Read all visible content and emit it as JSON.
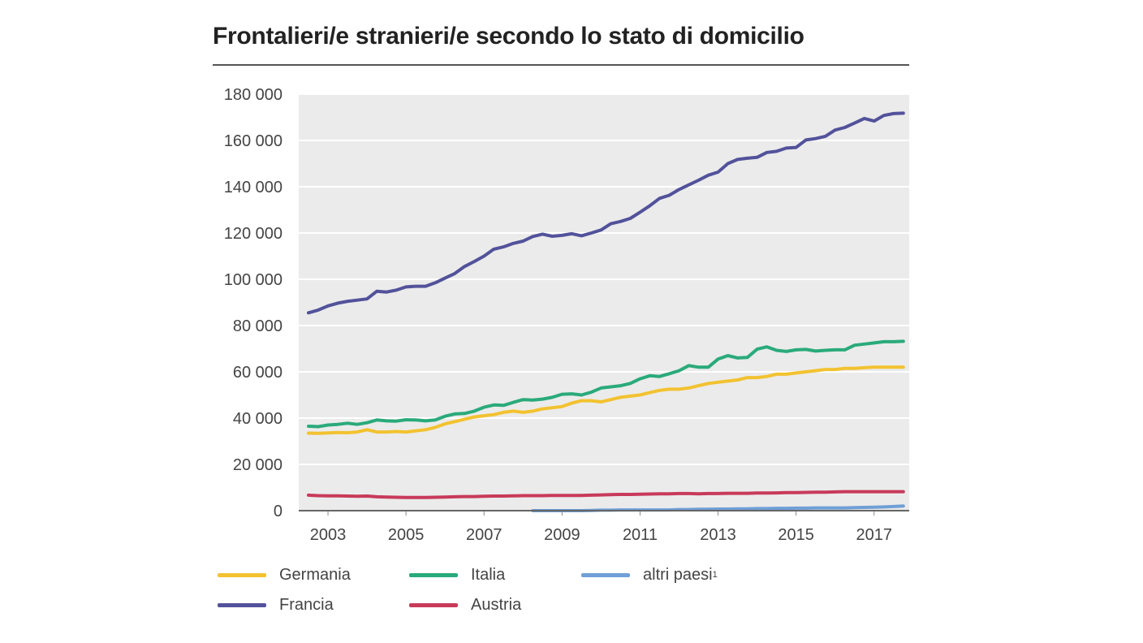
{
  "title": "Frontalieri/e stranieri/e secondo lo stato di domicilio",
  "chart_data": {
    "type": "line",
    "title": "Frontalieri/e stranieri/e secondo lo stato di domicilio",
    "xlabel": "",
    "ylabel": "",
    "xlim": [
      2002.25,
      2017.9
    ],
    "ylim": [
      0,
      180000
    ],
    "grid": true,
    "legend_position": "bottom",
    "x_ticks": [
      2003,
      2005,
      2007,
      2009,
      2011,
      2013,
      2015,
      2017
    ],
    "y_ticks": [
      0,
      20000,
      40000,
      60000,
      80000,
      100000,
      120000,
      140000,
      160000,
      180000
    ],
    "y_tick_labels": [
      "0",
      "20 000",
      "40 000",
      "60 000",
      "80 000",
      "100 000",
      "120 000",
      "140 000",
      "160 000",
      "180 000"
    ],
    "series": [
      {
        "name": "Germania",
        "color": "#f2c230",
        "x": [
          2002.5,
          2002.75,
          2003,
          2003.25,
          2003.5,
          2003.75,
          2004,
          2004.25,
          2004.5,
          2004.75,
          2005,
          2005.25,
          2005.5,
          2005.75,
          2006,
          2006.25,
          2006.5,
          2006.75,
          2007,
          2007.25,
          2007.5,
          2007.75,
          2008,
          2008.25,
          2008.5,
          2008.75,
          2009,
          2009.25,
          2009.5,
          2009.75,
          2010,
          2010.25,
          2010.5,
          2010.75,
          2011,
          2011.25,
          2011.5,
          2011.75,
          2012,
          2012.25,
          2012.5,
          2012.75,
          2013,
          2013.25,
          2013.5,
          2013.75,
          2014,
          2014.25,
          2014.5,
          2014.75,
          2015,
          2015.25,
          2015.5,
          2015.75,
          2016,
          2016.25,
          2016.5,
          2016.75,
          2017,
          2017.25,
          2017.5,
          2017.75
        ],
        "values": [
          33500,
          33400,
          33600,
          33800,
          33700,
          34000,
          35000,
          34000,
          34000,
          34200,
          34000,
          34500,
          35000,
          36000,
          37500,
          38500,
          39500,
          40500,
          41000,
          41500,
          42500,
          43000,
          42500,
          43000,
          44000,
          44500,
          45000,
          46500,
          47500,
          47500,
          47000,
          48000,
          49000,
          49500,
          50000,
          51000,
          52000,
          52500,
          52500,
          53000,
          54000,
          55000,
          55500,
          56000,
          56500,
          57500,
          57500,
          58000,
          59000,
          59000,
          59500,
          60000,
          60500,
          61000,
          61000,
          61500,
          61500,
          61800,
          62000,
          62000,
          62000,
          62000
        ]
      },
      {
        "name": "Italia",
        "color": "#2aaa7b",
        "x": [
          2002.5,
          2002.75,
          2003,
          2003.25,
          2003.5,
          2003.75,
          2004,
          2004.25,
          2004.5,
          2004.75,
          2005,
          2005.25,
          2005.5,
          2005.75,
          2006,
          2006.25,
          2006.5,
          2006.75,
          2007,
          2007.25,
          2007.5,
          2007.75,
          2008,
          2008.25,
          2008.5,
          2008.75,
          2009,
          2009.25,
          2009.5,
          2009.75,
          2010,
          2010.25,
          2010.5,
          2010.75,
          2011,
          2011.25,
          2011.5,
          2011.75,
          2012,
          2012.25,
          2012.5,
          2012.75,
          2013,
          2013.25,
          2013.5,
          2013.75,
          2014,
          2014.25,
          2014.5,
          2014.75,
          2015,
          2015.25,
          2015.5,
          2015.75,
          2016,
          2016.25,
          2016.5,
          2016.75,
          2017,
          2017.25,
          2017.5,
          2017.75
        ],
        "values": [
          36500,
          36300,
          37000,
          37300,
          37800,
          37300,
          38000,
          39200,
          38800,
          38700,
          39300,
          39200,
          38800,
          39200,
          40800,
          41800,
          42000,
          43000,
          44700,
          45700,
          45500,
          46800,
          48000,
          47800,
          48200,
          49000,
          50300,
          50500,
          50000,
          51200,
          53000,
          53500,
          54000,
          55000,
          57000,
          58300,
          58000,
          59200,
          60500,
          62700,
          62000,
          62000,
          65500,
          67000,
          66000,
          66200,
          69800,
          70800,
          69300,
          68800,
          69500,
          69700,
          69000,
          69300,
          69500,
          69500,
          71500,
          72000,
          72500,
          73000,
          73000,
          73200
        ]
      },
      {
        "name": "altri paesi",
        "color": "#6f9fd6",
        "x": [
          2008.25,
          2008.5,
          2008.75,
          2009,
          2009.25,
          2009.5,
          2009.75,
          2010,
          2010.25,
          2010.5,
          2010.75,
          2011,
          2011.25,
          2011.5,
          2011.75,
          2012,
          2012.25,
          2012.5,
          2012.75,
          2013,
          2013.25,
          2013.5,
          2013.75,
          2014,
          2014.25,
          2014.5,
          2014.75,
          2015,
          2015.25,
          2015.5,
          2015.75,
          2016,
          2016.25,
          2016.5,
          2016.75,
          2017,
          2017.25,
          2017.5,
          2017.75
        ],
        "values": [
          0,
          0,
          0,
          0,
          0,
          0,
          100,
          200,
          200,
          300,
          300,
          300,
          300,
          300,
          300,
          500,
          500,
          600,
          600,
          700,
          700,
          800,
          800,
          900,
          900,
          1000,
          1000,
          1100,
          1100,
          1200,
          1200,
          1200,
          1200,
          1300,
          1400,
          1500,
          1600,
          1800,
          2000
        ]
      },
      {
        "name": "Francia",
        "color": "#52529b",
        "x": [
          2002.5,
          2002.75,
          2003,
          2003.25,
          2003.5,
          2003.75,
          2004,
          2004.25,
          2004.5,
          2004.75,
          2005,
          2005.25,
          2005.5,
          2005.75,
          2006,
          2006.25,
          2006.5,
          2006.75,
          2007,
          2007.25,
          2007.5,
          2007.75,
          2008,
          2008.25,
          2008.5,
          2008.75,
          2009,
          2009.25,
          2009.5,
          2009.75,
          2010,
          2010.25,
          2010.5,
          2010.75,
          2011,
          2011.25,
          2011.5,
          2011.75,
          2012,
          2012.25,
          2012.5,
          2012.75,
          2013,
          2013.25,
          2013.5,
          2013.75,
          2014,
          2014.25,
          2014.5,
          2014.75,
          2015,
          2015.25,
          2015.5,
          2015.75,
          2016,
          2016.25,
          2016.5,
          2016.75,
          2017,
          2017.25,
          2017.5,
          2017.75
        ],
        "values": [
          85500,
          86700,
          88500,
          89700,
          90500,
          91000,
          91500,
          94800,
          94500,
          95300,
          96700,
          97000,
          97000,
          98500,
          100500,
          102500,
          105500,
          107700,
          110000,
          113000,
          114000,
          115500,
          116500,
          118500,
          119500,
          118600,
          119000,
          119700,
          118800,
          120000,
          121300,
          124000,
          125000,
          126300,
          129000,
          131800,
          135000,
          136300,
          138800,
          140800,
          142800,
          145000,
          146300,
          150000,
          151800,
          152300,
          152700,
          154800,
          155300,
          156700,
          157000,
          160200,
          160800,
          161800,
          164500,
          165600,
          167500,
          169500,
          168400,
          170800,
          171600,
          171800
        ]
      },
      {
        "name": "Austria",
        "color": "#c83a5a",
        "x": [
          2002.5,
          2002.75,
          2003,
          2003.25,
          2003.5,
          2003.75,
          2004,
          2004.25,
          2004.5,
          2004.75,
          2005,
          2005.25,
          2005.5,
          2005.75,
          2006,
          2006.25,
          2006.5,
          2006.75,
          2007,
          2007.25,
          2007.5,
          2007.75,
          2008,
          2008.25,
          2008.5,
          2008.75,
          2009,
          2009.25,
          2009.5,
          2009.75,
          2010,
          2010.25,
          2010.5,
          2010.75,
          2011,
          2011.25,
          2011.5,
          2011.75,
          2012,
          2012.25,
          2012.5,
          2012.75,
          2013,
          2013.25,
          2013.5,
          2013.75,
          2014,
          2014.25,
          2014.5,
          2014.75,
          2015,
          2015.25,
          2015.5,
          2015.75,
          2016,
          2016.25,
          2016.5,
          2016.75,
          2017,
          2017.25,
          2017.5,
          2017.75
        ],
        "values": [
          6700,
          6500,
          6400,
          6400,
          6300,
          6200,
          6300,
          6000,
          5900,
          5800,
          5700,
          5700,
          5700,
          5800,
          5900,
          6000,
          6100,
          6100,
          6200,
          6300,
          6300,
          6400,
          6500,
          6500,
          6500,
          6600,
          6600,
          6600,
          6600,
          6700,
          6800,
          6900,
          7000,
          7000,
          7100,
          7200,
          7300,
          7300,
          7400,
          7400,
          7300,
          7400,
          7400,
          7500,
          7500,
          7500,
          7600,
          7600,
          7700,
          7800,
          7800,
          7900,
          8000,
          8000,
          8100,
          8200,
          8200,
          8200,
          8200,
          8200,
          8200,
          8200
        ]
      }
    ]
  },
  "legend": {
    "germania": "Germania",
    "italia": "Italia",
    "altri": "altri paesi",
    "altri_footnote": "1",
    "francia": "Francia",
    "austria": "Austria"
  },
  "colors": {
    "plot_bg": "#ebebeb",
    "grid": "#ffffff",
    "germania": "#f2c230",
    "italia": "#2aaa7b",
    "altri": "#6f9fd6",
    "francia": "#52529b",
    "austria": "#c83a5a"
  }
}
